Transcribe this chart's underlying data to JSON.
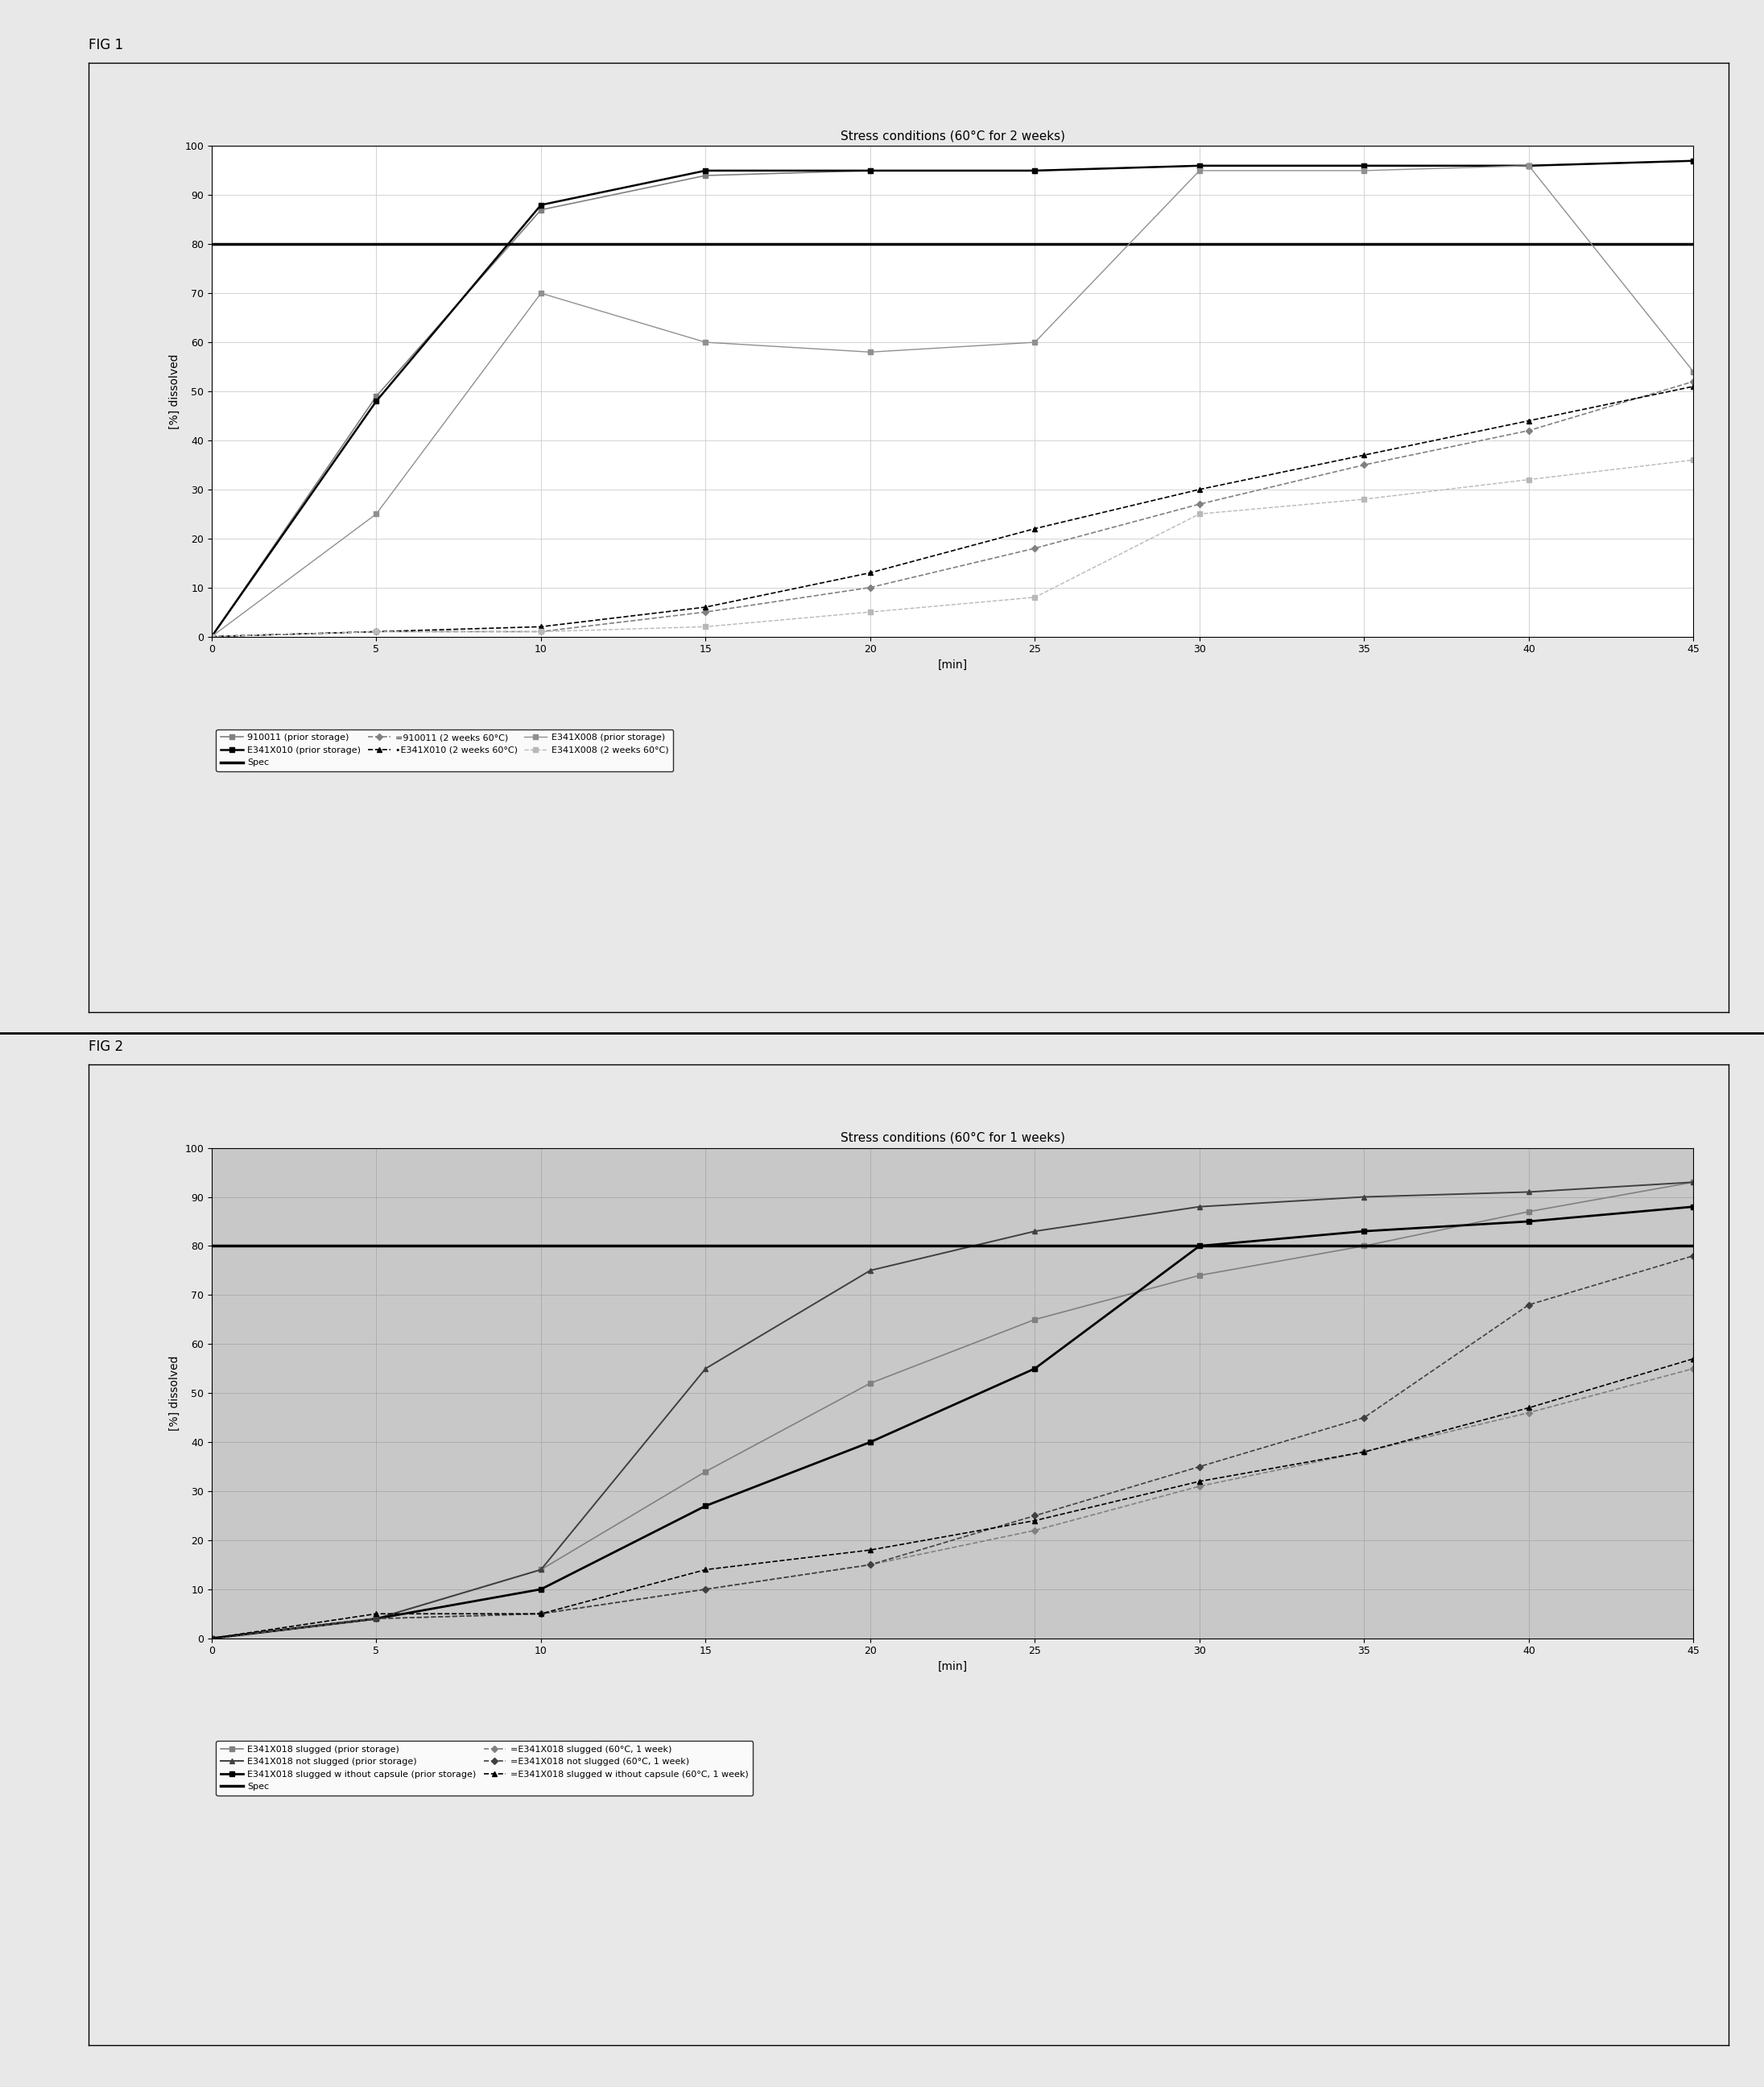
{
  "fig1": {
    "title": "Stress conditions (60°C for 2 weeks)",
    "xlabel": "[min]",
    "ylabel": "[%] dissolved",
    "xlim": [
      0,
      45
    ],
    "ylim": [
      0,
      100
    ],
    "xticks": [
      0,
      5,
      10,
      15,
      20,
      25,
      30,
      35,
      40,
      45
    ],
    "yticks": [
      0,
      10,
      20,
      30,
      40,
      50,
      60,
      70,
      80,
      90,
      100
    ],
    "plot_bg": "#ffffff",
    "series": {
      "s910011_prior": {
        "x": [
          0,
          5,
          10,
          15,
          20,
          25,
          30,
          35,
          40,
          45
        ],
        "y": [
          0,
          49,
          87,
          94,
          95,
          95,
          96,
          96,
          96,
          97
        ],
        "color": "#808080",
        "linestyle": "-",
        "marker": "s",
        "markersize": 5,
        "linewidth": 1.2,
        "label": "910011 (prior storage)"
      },
      "E341X010_prior": {
        "x": [
          0,
          5,
          10,
          15,
          20,
          25,
          30,
          35,
          40,
          45
        ],
        "y": [
          0,
          48,
          88,
          95,
          95,
          95,
          96,
          96,
          96,
          97
        ],
        "color": "#000000",
        "linestyle": "-",
        "marker": "s",
        "markersize": 5,
        "linewidth": 1.8,
        "label": "E341X010 (prior storage)"
      },
      "Spec": {
        "x": [
          0,
          45
        ],
        "y": [
          80,
          80
        ],
        "color": "#000000",
        "linestyle": "-",
        "marker": null,
        "markersize": 0,
        "linewidth": 2.5,
        "label": "Spec"
      },
      "s910011_2weeks": {
        "x": [
          0,
          5,
          10,
          15,
          20,
          25,
          30,
          35,
          40,
          45
        ],
        "y": [
          0,
          1,
          1,
          5,
          10,
          18,
          27,
          35,
          42,
          52
        ],
        "color": "#808080",
        "linestyle": "--",
        "marker": "D",
        "markersize": 4,
        "linewidth": 1.2,
        "label": "=910011 (2 weeks 60°C)"
      },
      "E341X010_2weeks": {
        "x": [
          0,
          5,
          10,
          15,
          20,
          25,
          30,
          35,
          40,
          45
        ],
        "y": [
          0,
          1,
          2,
          6,
          13,
          22,
          30,
          37,
          44,
          51
        ],
        "color": "#000000",
        "linestyle": "--",
        "marker": "^",
        "markersize": 4,
        "linewidth": 1.2,
        "label": "•E341X010 (2 weeks 60°C)"
      },
      "E341X008_prior": {
        "x": [
          0,
          5,
          10,
          15,
          20,
          25,
          30,
          35,
          40,
          45
        ],
        "y": [
          0,
          25,
          70,
          60,
          58,
          60,
          95,
          95,
          96,
          54
        ],
        "color": "#909090",
        "linestyle": "-",
        "marker": "s",
        "markersize": 4,
        "linewidth": 1.0,
        "label": "E341X008 (prior storage)"
      },
      "E341X008_2weeks": {
        "x": [
          0,
          5,
          10,
          15,
          20,
          25,
          30,
          35,
          40,
          45
        ],
        "y": [
          0,
          1,
          1,
          2,
          5,
          8,
          25,
          28,
          32,
          36
        ],
        "color": "#b8b8b8",
        "linestyle": "--",
        "marker": "s",
        "markersize": 4,
        "linewidth": 1.0,
        "label": "E341X008 (2 weeks 60°C)"
      }
    },
    "legend_rows": [
      [
        "910011 (prior storage)",
        "E341X010 (prior storage)",
        "Spec"
      ],
      [
        "=910011 (2 weeks 60°C)",
        "•E341X010 (2 weeks 60°C)",
        "E341X008 (prior storage)"
      ],
      [
        "E341X008 (2 weeks 60°C)"
      ]
    ]
  },
  "fig2": {
    "title": "Stress conditions (60°C for 1 weeks)",
    "xlabel": "[min]",
    "ylabel": "[%] dissolved",
    "xlim": [
      0,
      45
    ],
    "ylim": [
      0,
      100
    ],
    "xticks": [
      0,
      5,
      10,
      15,
      20,
      25,
      30,
      35,
      40,
      45
    ],
    "yticks": [
      0,
      10,
      20,
      30,
      40,
      50,
      60,
      70,
      80,
      90,
      100
    ],
    "plot_bg": "#c8c8c8",
    "series": {
      "E341X018_slugged_prior": {
        "x": [
          0,
          5,
          10,
          15,
          20,
          25,
          30,
          35,
          40,
          45
        ],
        "y": [
          0,
          4,
          14,
          34,
          52,
          65,
          74,
          80,
          87,
          93
        ],
        "color": "#808080",
        "linestyle": "-",
        "marker": "s",
        "markersize": 5,
        "linewidth": 1.2,
        "label": "E341X018 slugged (prior storage)"
      },
      "E341X018_notslugged_prior": {
        "x": [
          0,
          5,
          10,
          15,
          20,
          25,
          30,
          35,
          40,
          45
        ],
        "y": [
          0,
          4,
          14,
          55,
          75,
          83,
          88,
          90,
          91,
          93
        ],
        "color": "#404040",
        "linestyle": "-",
        "marker": "^",
        "markersize": 5,
        "linewidth": 1.4,
        "label": "E341X018 not slugged (prior storage)"
      },
      "E341X018_slugged_nocap_prior": {
        "x": [
          0,
          5,
          10,
          15,
          20,
          25,
          30,
          35,
          40,
          45
        ],
        "y": [
          0,
          4,
          10,
          27,
          40,
          55,
          80,
          83,
          85,
          88
        ],
        "color": "#000000",
        "linestyle": "-",
        "marker": "s",
        "markersize": 5,
        "linewidth": 2.0,
        "label": "E341X018 slugged w ithout capsule (prior storage)"
      },
      "Spec": {
        "x": [
          0,
          45
        ],
        "y": [
          80,
          80
        ],
        "color": "#000000",
        "linestyle": "-",
        "marker": null,
        "markersize": 0,
        "linewidth": 2.5,
        "label": "Spec"
      },
      "E341X018_slugged_1week": {
        "x": [
          0,
          5,
          10,
          15,
          20,
          25,
          30,
          35,
          40,
          45
        ],
        "y": [
          0,
          4,
          5,
          10,
          15,
          22,
          31,
          38,
          46,
          55
        ],
        "color": "#808080",
        "linestyle": "--",
        "marker": "D",
        "markersize": 4,
        "linewidth": 1.2,
        "label": "=E341X018 slugged (60°C, 1 week)"
      },
      "E341X018_notslugged_1week": {
        "x": [
          0,
          5,
          10,
          15,
          20,
          25,
          30,
          35,
          40,
          45
        ],
        "y": [
          0,
          4,
          5,
          10,
          15,
          25,
          35,
          45,
          68,
          78
        ],
        "color": "#404040",
        "linestyle": "--",
        "marker": "D",
        "markersize": 4,
        "linewidth": 1.2,
        "label": "=E341X018 not slugged (60°C, 1 week)"
      },
      "E341X018_slugged_nocap_1week": {
        "x": [
          0,
          5,
          10,
          15,
          20,
          25,
          30,
          35,
          40,
          45
        ],
        "y": [
          0,
          5,
          5,
          14,
          18,
          24,
          32,
          38,
          47,
          57
        ],
        "color": "#000000",
        "linestyle": "--",
        "marker": "^",
        "markersize": 4,
        "linewidth": 1.2,
        "label": "=E341X018 slugged w ithout capsule (60°C, 1 week)"
      }
    },
    "legend_rows": [
      [
        "E341X018 slugged (prior storage)",
        "E341X018 not slugged (prior storage)"
      ],
      [
        "E341X018 slugged w ithout capsule (prior storage)",
        "Spec"
      ],
      [
        "=E341X018 slugged (60°C, 1 week)",
        "=E341X018 not slugged (60°C, 1 week)"
      ],
      [
        "=E341X018 slugged w ithout capsule (60°C, 1 week)"
      ]
    ]
  },
  "fig_bg_color": "#e8e8e8",
  "outer_bg_color": "#ffffff"
}
